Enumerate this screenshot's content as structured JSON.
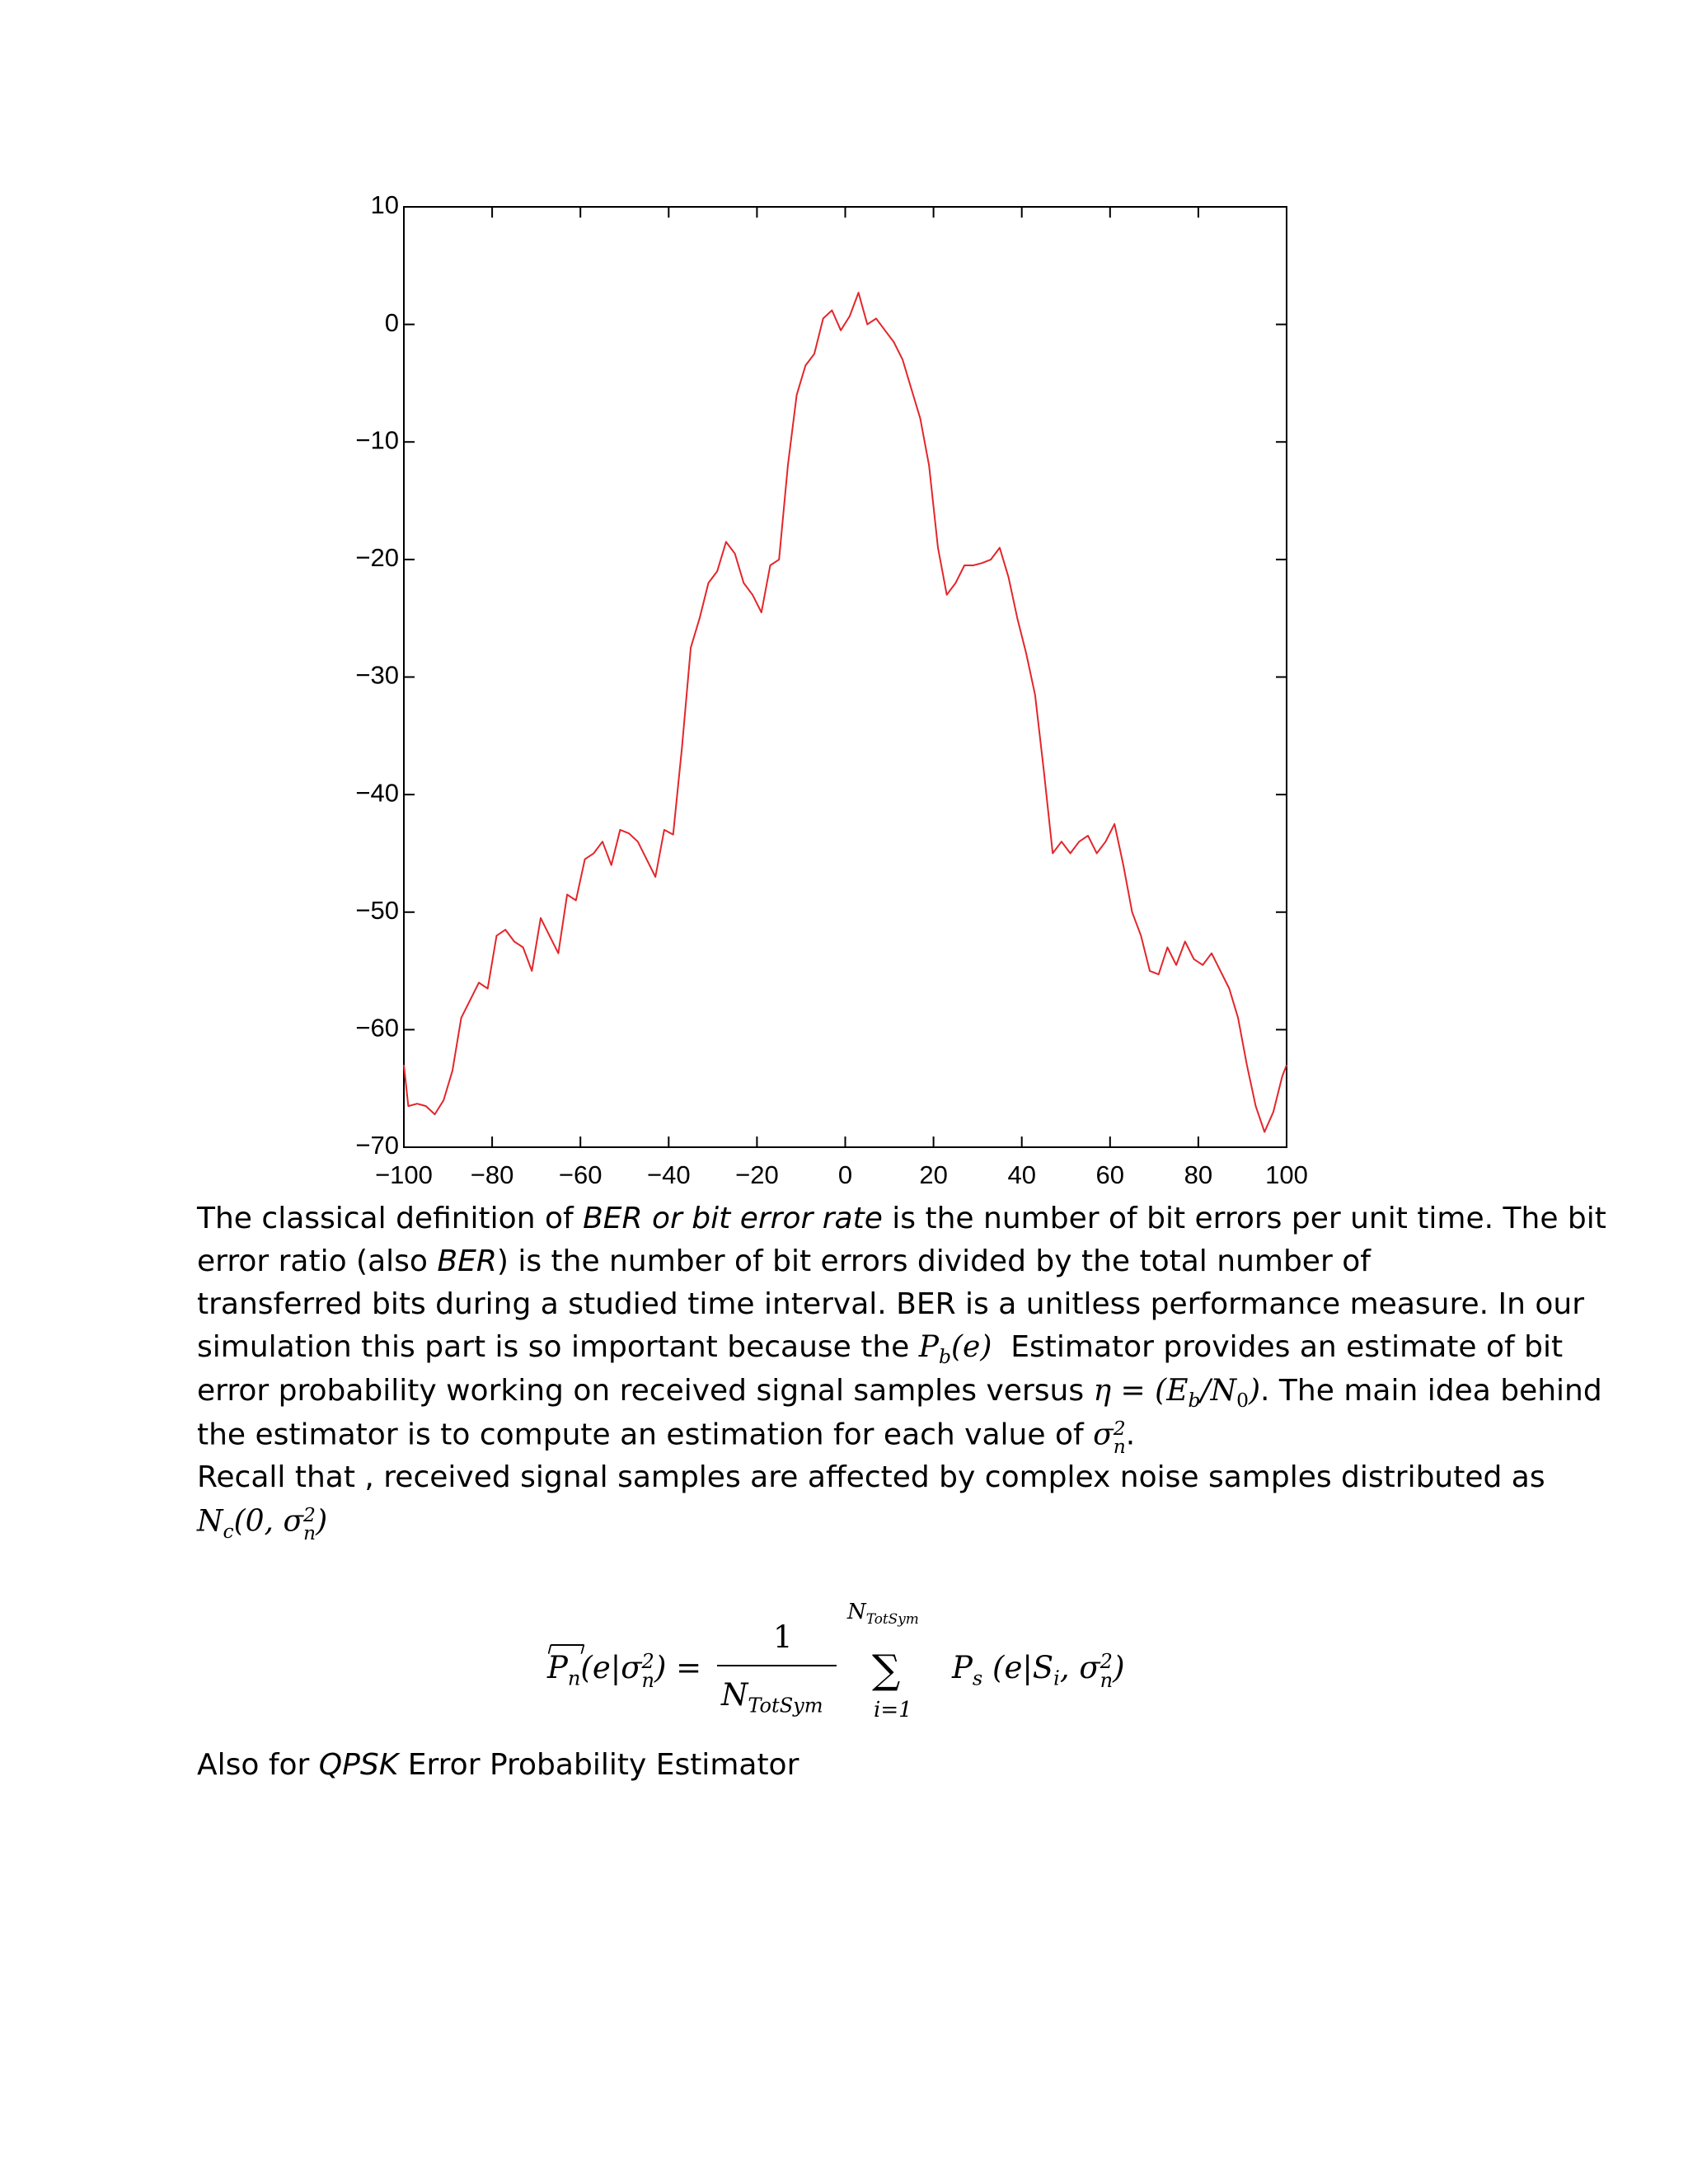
{
  "chart_data": {
    "type": "line",
    "x": [
      -100,
      -99,
      -97,
      -95,
      -93,
      -91,
      -89,
      -87,
      -85,
      -83,
      -81,
      -79,
      -77,
      -75,
      -73,
      -71,
      -69,
      -67,
      -65,
      -63,
      -61,
      -59,
      -57,
      -55,
      -53,
      -51,
      -49,
      -47,
      -45,
      -43,
      -41,
      -39,
      -37,
      -35,
      -33,
      -31,
      -29,
      -27,
      -25,
      -23,
      -21,
      -19,
      -17,
      -15,
      -13,
      -11,
      -9,
      -7,
      -5,
      -3,
      -1,
      1,
      3,
      5,
      7,
      9,
      11,
      13,
      15,
      17,
      19,
      21,
      23,
      25,
      27,
      29,
      31,
      33,
      35,
      37,
      39,
      41,
      43,
      45,
      47,
      49,
      51,
      53,
      55,
      57,
      59,
      61,
      63,
      65,
      67,
      69,
      71,
      73,
      75,
      77,
      79,
      81,
      83,
      85,
      87,
      89,
      91,
      93,
      95,
      97,
      99,
      100
    ],
    "series": [
      {
        "name": null,
        "color": "#e3262b",
        "values": [
          -63,
          -66.5,
          -66.3,
          -66.5,
          -67.2,
          -66,
          -63.5,
          -59,
          -57.5,
          -56,
          -56.5,
          -52,
          -51.5,
          -52.5,
          -53,
          -55,
          -50.5,
          -52,
          -53.5,
          -48.5,
          -49,
          -45.5,
          -45,
          -44,
          -46,
          -43,
          -43.3,
          -44,
          -45.5,
          -47,
          -43,
          -43.4,
          -36,
          -27.5,
          -25,
          -22,
          -21,
          -18.5,
          -19.5,
          -22,
          -23,
          -24.5,
          -20.5,
          -20,
          -12,
          -6,
          -3.5,
          -2.5,
          0.5,
          1.2,
          -0.5,
          0.7,
          2.7,
          0,
          0.5,
          -0.5,
          -1.5,
          -3,
          -5.5,
          -8,
          -12,
          -19,
          -23,
          -22,
          -20.5,
          -20.5,
          -20.3,
          -20,
          -19,
          -21.5,
          -25,
          -28,
          -31.5,
          -38,
          -45,
          -44,
          -45,
          -44,
          -43.5,
          -45,
          -44,
          -42.5,
          -46,
          -50,
          -52,
          -55,
          -55.3,
          -53,
          -54.5,
          -52.5,
          -54,
          -54.5,
          -53.5,
          -55,
          -56.5,
          -59,
          -63,
          -66.5,
          -68.7,
          -67,
          -64,
          -63
        ]
      }
    ],
    "xlim": [
      -100,
      100
    ],
    "ylim": [
      -70,
      10
    ],
    "xticks": [
      {
        "value": -100,
        "label": "−100"
      },
      {
        "value": -80,
        "label": "−80"
      },
      {
        "value": -60,
        "label": "−60"
      },
      {
        "value": -40,
        "label": "−40"
      },
      {
        "value": -20,
        "label": "−20"
      },
      0,
      20,
      40,
      60,
      80,
      100
    ],
    "yticks": [
      10,
      0,
      {
        "value": -10,
        "label": "−10"
      },
      {
        "value": -20,
        "label": "−20"
      },
      {
        "value": -30,
        "label": "−30"
      },
      {
        "value": -40,
        "label": "−40"
      },
      {
        "value": -50,
        "label": "−50"
      },
      {
        "value": -60,
        "label": "−60"
      },
      {
        "value": -70,
        "label": "−70"
      }
    ],
    "grid": false
  },
  "text": {
    "lines": [
      [
        "The classical definition of ",
        "BER or bit error rate",
        " is the number of bit errors per unit time. The bit"
      ],
      [
        "error ratio (also ",
        "BER",
        ") is the number of bit errors divided by the total number of"
      ],
      [
        "transferred bits during a studied time interval. BER is a unitless performance measure. In our"
      ],
      [
        "simulation this part is so important because the ",
        "P",
        "b",
        "(e)",
        "  Estimator provides an estimate of bit"
      ],
      [
        "error probability working on received signal samples versus ",
        "η = (E",
        "b",
        "/N",
        "0",
        ")",
        ". The main idea behind"
      ],
      [
        "the estimator is to compute an estimation for each value of ",
        "σ",
        "2",
        "n",
        "."
      ],
      [
        "Recall that , received signal samples are affected by complex noise samples distributed as"
      ],
      [
        "N",
        "c",
        "(0, σ",
        "2",
        "n",
        ")"
      ]
    ]
  },
  "formula": {
    "lhs": [
      "P",
      "n",
      "(e|σ",
      "2",
      "n",
      ")",
      "="
    ],
    "numerator": "1",
    "denominator": [
      "N",
      "TotSym"
    ],
    "sum": "∑",
    "upper": [
      "N",
      "TotSym"
    ],
    "lower": "i=1",
    "rhs": [
      "P",
      "s",
      " (e|S",
      "i",
      ", σ",
      "2",
      "n",
      ")"
    ]
  },
  "closing": [
    "Also for ",
    "QPSK",
    " Error Probability Estimator"
  ]
}
